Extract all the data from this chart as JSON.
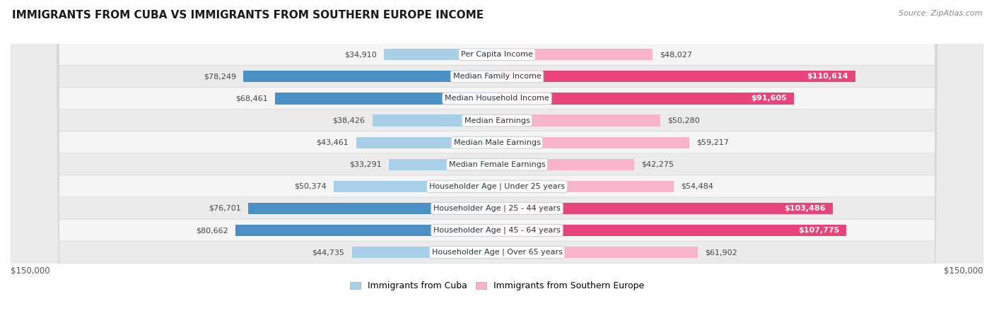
{
  "title": "IMMIGRANTS FROM CUBA VS IMMIGRANTS FROM SOUTHERN EUROPE INCOME",
  "source": "Source: ZipAtlas.com",
  "categories": [
    "Per Capita Income",
    "Median Family Income",
    "Median Household Income",
    "Median Earnings",
    "Median Male Earnings",
    "Median Female Earnings",
    "Householder Age | Under 25 years",
    "Householder Age | 25 - 44 years",
    "Householder Age | 45 - 64 years",
    "Householder Age | Over 65 years"
  ],
  "cuba_values": [
    34910,
    78249,
    68461,
    38426,
    43461,
    33291,
    50374,
    76701,
    80662,
    44735
  ],
  "southern_europe_values": [
    48027,
    110614,
    91605,
    50280,
    59217,
    42275,
    54484,
    103486,
    107775,
    61902
  ],
  "cuba_labels": [
    "$34,910",
    "$78,249",
    "$68,461",
    "$38,426",
    "$43,461",
    "$33,291",
    "$50,374",
    "$76,701",
    "$80,662",
    "$44,735"
  ],
  "southern_europe_labels": [
    "$48,027",
    "$110,614",
    "$91,605",
    "$50,280",
    "$59,217",
    "$42,275",
    "$54,484",
    "$103,486",
    "$107,775",
    "$61,902"
  ],
  "cuba_color_light": "#a8cfe8",
  "cuba_color_dark": "#4a90c4",
  "southern_europe_color_light": "#f8b4cb",
  "southern_europe_color_dark": "#e8447a",
  "cuba_threshold": 60000,
  "se_threshold": 80000,
  "max_value": 150000,
  "legend_cuba": "Immigrants from Cuba",
  "legend_southern_europe": "Immigrants from Southern Europe",
  "fig_bg": "#ffffff",
  "row_bg_even": "#f5f5f5",
  "row_bg_odd": "#ebebeb",
  "row_border": "#d8d8d8"
}
